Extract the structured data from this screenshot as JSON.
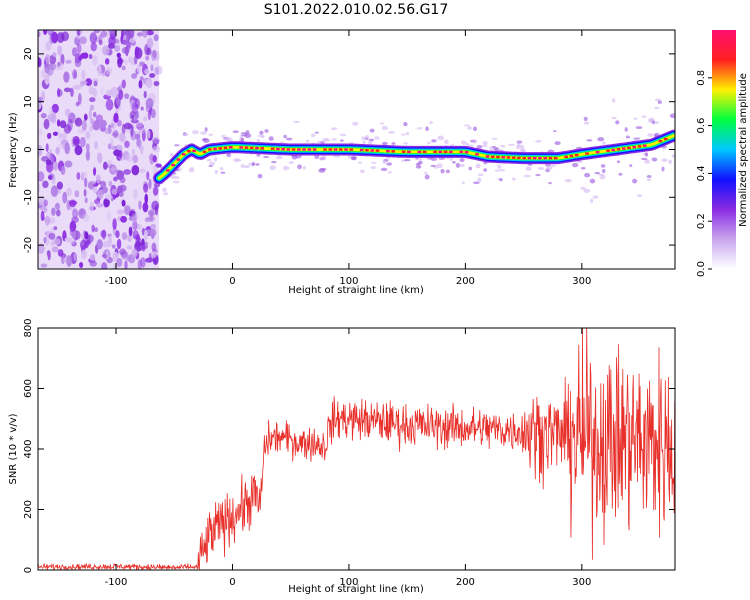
{
  "title": "S101.2022.010.02.56.G17",
  "colors": {
    "frame": "#000000",
    "snr_line": "#e8302b",
    "noise_purple": "#8a3bd8",
    "colormap": [
      "#ffffff",
      "#c9a6ee",
      "#8a2be2",
      "#1010ff",
      "#00c8ff",
      "#00ff40",
      "#fff000",
      "#ff2020",
      "#ff1070"
    ]
  },
  "chart_data": [
    {
      "type": "heatmap",
      "xlabel": "Height of straight line (km)",
      "ylabel": "Frequency (Hz)",
      "xlim": [
        -167,
        380
      ],
      "ylim": [
        -25,
        25
      ],
      "xticks": [
        -100,
        0,
        100,
        200,
        300
      ],
      "yticks": [
        -20,
        -10,
        0,
        10,
        20
      ],
      "grid": false,
      "noise_region_x": [
        -167,
        -63
      ],
      "ridge": {
        "x": [
          -63,
          -58,
          -50,
          -42,
          -35,
          -28,
          -20,
          0,
          50,
          100,
          150,
          200,
          220,
          250,
          280,
          300,
          330,
          360,
          380
        ],
        "y": [
          -6,
          -5,
          -3,
          -1,
          0,
          -1,
          0,
          0.5,
          0,
          0,
          -0.5,
          -0.5,
          -1.5,
          -1.8,
          -1.8,
          -1,
          0,
          1,
          3
        ]
      },
      "colorbar": {
        "label": "Normalized spectral amplitude",
        "ticks": [
          0.0,
          0.2,
          0.4,
          0.6,
          0.8
        ],
        "range": [
          0,
          1
        ]
      }
    },
    {
      "type": "line",
      "xlabel": "Height of straight line (km)",
      "ylabel": "SNR (10 * v/v)",
      "xlim": [
        -167,
        380
      ],
      "ylim": [
        0,
        800
      ],
      "xticks": [
        -100,
        0,
        100,
        200,
        300
      ],
      "yticks": [
        0,
        200,
        400,
        600,
        800
      ],
      "grid": false,
      "series": [
        {
          "x": [
            -167,
            -100,
            -50,
            -30,
            -27,
            -20,
            -10,
            0,
            10,
            20,
            24,
            27,
            30,
            40,
            50,
            60,
            70,
            80,
            83,
            90,
            100,
            150,
            200,
            250,
            280,
            300,
            320,
            340,
            360,
            380
          ],
          "values": [
            10,
            12,
            8,
            10,
            40,
            110,
            150,
            180,
            210,
            250,
            200,
            390,
            430,
            440,
            430,
            420,
            420,
            410,
            480,
            500,
            500,
            480,
            470,
            460,
            450,
            440,
            430,
            430,
            420,
            420
          ]
        }
      ]
    }
  ]
}
